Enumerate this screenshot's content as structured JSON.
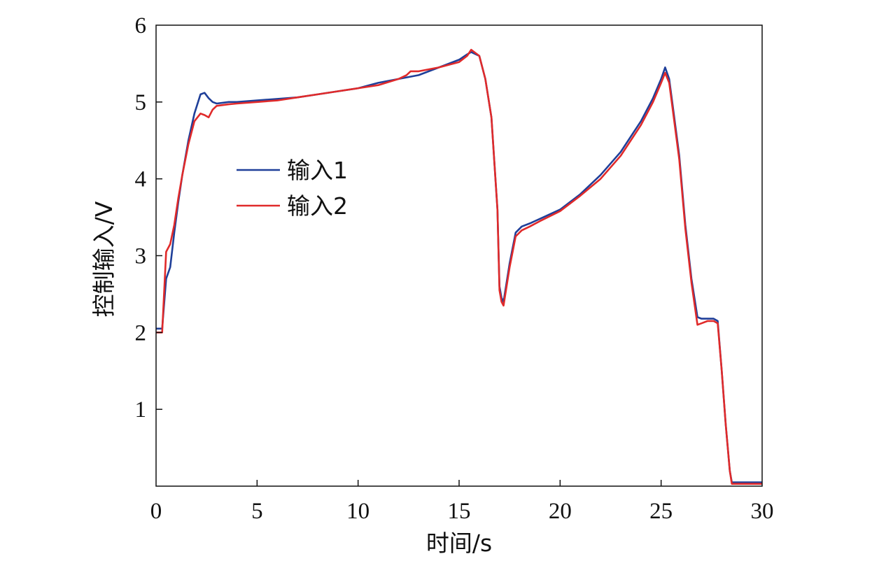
{
  "chart_data": {
    "type": "line",
    "xlabel": "时间/s",
    "ylabel": "控制输入/V",
    "xlim": [
      0,
      30
    ],
    "ylim": [
      0,
      6
    ],
    "x_ticks": [
      0,
      5,
      10,
      15,
      20,
      25,
      30
    ],
    "y_ticks": [
      1,
      2,
      3,
      4,
      5,
      6
    ],
    "grid": false,
    "legend": {
      "placement": "upper-left-inside"
    },
    "series": [
      {
        "name": "输入1",
        "color": "#1f3f99",
        "x": [
          0.0,
          0.3,
          0.5,
          0.7,
          0.9,
          1.1,
          1.3,
          1.6,
          1.9,
          2.2,
          2.4,
          2.6,
          2.8,
          3.0,
          3.3,
          3.6,
          4.0,
          5.0,
          6.0,
          7.0,
          8.0,
          9.0,
          10.0,
          11.0,
          12.0,
          13.0,
          14.0,
          15.0,
          15.4,
          15.6,
          16.0,
          16.3,
          16.6,
          16.9,
          17.0,
          17.1,
          17.2,
          17.5,
          17.8,
          18.1,
          18.5,
          19.0,
          20.0,
          21.0,
          22.0,
          23.0,
          24.0,
          24.6,
          25.0,
          25.2,
          25.4,
          25.6,
          25.9,
          26.2,
          26.5,
          26.8,
          27.0,
          27.3,
          27.6,
          27.8,
          28.0,
          28.2,
          28.4,
          28.5,
          28.6,
          29.0,
          30.0
        ],
        "y": [
          2.05,
          2.05,
          2.7,
          2.85,
          3.3,
          3.7,
          4.05,
          4.5,
          4.85,
          5.1,
          5.12,
          5.05,
          5.0,
          4.98,
          4.99,
          5.0,
          5.0,
          5.02,
          5.04,
          5.06,
          5.1,
          5.14,
          5.18,
          5.25,
          5.3,
          5.35,
          5.45,
          5.55,
          5.62,
          5.65,
          5.6,
          5.3,
          4.8,
          3.6,
          2.6,
          2.45,
          2.4,
          2.9,
          3.3,
          3.38,
          3.42,
          3.48,
          3.6,
          3.8,
          4.05,
          4.35,
          4.75,
          5.05,
          5.3,
          5.45,
          5.3,
          4.9,
          4.3,
          3.4,
          2.7,
          2.2,
          2.18,
          2.18,
          2.18,
          2.15,
          1.5,
          0.8,
          0.2,
          0.05,
          0.05,
          0.05,
          0.05
        ]
      },
      {
        "name": "输入2",
        "color": "#e02a2a",
        "x": [
          0.0,
          0.3,
          0.5,
          0.7,
          0.9,
          1.1,
          1.3,
          1.6,
          1.9,
          2.2,
          2.4,
          2.6,
          2.8,
          3.0,
          3.3,
          3.6,
          4.0,
          5.0,
          6.0,
          7.0,
          8.0,
          9.0,
          10.0,
          11.0,
          12.0,
          12.4,
          12.6,
          13.0,
          14.0,
          15.0,
          15.4,
          15.6,
          16.0,
          16.3,
          16.6,
          16.9,
          17.0,
          17.1,
          17.2,
          17.5,
          17.8,
          18.1,
          18.5,
          19.0,
          20.0,
          21.0,
          22.0,
          23.0,
          24.0,
          24.6,
          25.0,
          25.2,
          25.4,
          25.6,
          25.9,
          26.2,
          26.5,
          26.8,
          27.0,
          27.3,
          27.6,
          27.8,
          28.0,
          28.2,
          28.4,
          28.5,
          28.6,
          29.0,
          30.0
        ],
        "y": [
          2.0,
          2.0,
          3.05,
          3.15,
          3.4,
          3.75,
          4.05,
          4.45,
          4.75,
          4.85,
          4.83,
          4.8,
          4.9,
          4.95,
          4.96,
          4.97,
          4.98,
          5.0,
          5.02,
          5.06,
          5.1,
          5.14,
          5.18,
          5.22,
          5.3,
          5.35,
          5.4,
          5.4,
          5.45,
          5.52,
          5.6,
          5.68,
          5.6,
          5.3,
          4.8,
          3.6,
          2.55,
          2.4,
          2.35,
          2.85,
          3.25,
          3.33,
          3.38,
          3.45,
          3.58,
          3.78,
          4.0,
          4.3,
          4.7,
          5.0,
          5.25,
          5.38,
          5.25,
          4.85,
          4.25,
          3.35,
          2.65,
          2.1,
          2.12,
          2.15,
          2.15,
          2.12,
          1.5,
          0.8,
          0.2,
          0.03,
          0.03,
          0.03,
          0.03
        ]
      }
    ]
  }
}
